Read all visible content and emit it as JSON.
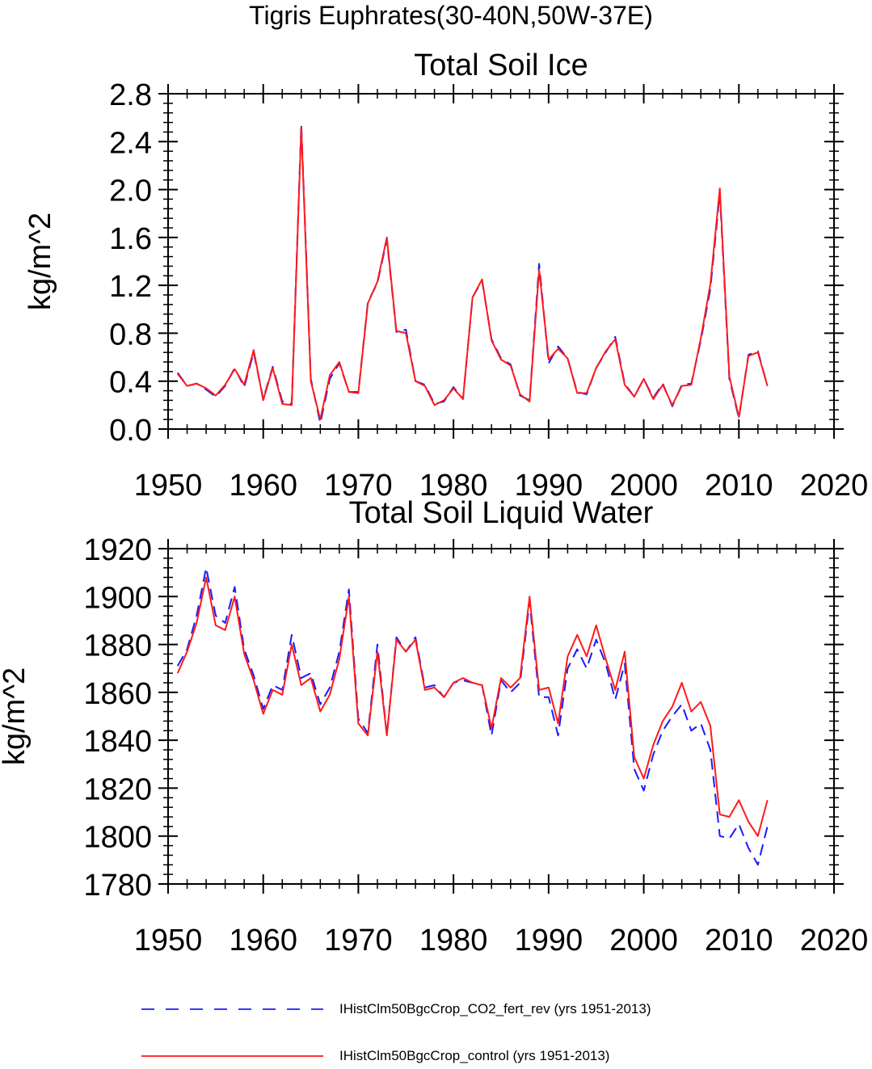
{
  "figure_title": "Tigris Euphrates(30-40N,50W-37E)",
  "colors": {
    "series_1": "#1a1aff",
    "series_2": "#ff1a1a",
    "axis": "#000000"
  },
  "legend": [
    {
      "label": "IHistClm50BgcCrop_CO2_fert_rev (yrs 1951-2013)",
      "style": "dashed",
      "color": "#1a1aff"
    },
    {
      "label": "IHistClm50BgcCrop_control (yrs 1951-2013)",
      "style": "solid",
      "color": "#ff1a1a"
    }
  ],
  "chart_data": [
    {
      "type": "line",
      "title": "Total Soil Ice",
      "xlabel": "",
      "ylabel": "kg/m^2",
      "xlim": [
        1950,
        2020
      ],
      "ylim": [
        0,
        2.8
      ],
      "xticks": [
        "1950",
        "1960",
        "1970",
        "1980",
        "1990",
        "2000",
        "2010",
        "2020"
      ],
      "yticks": [
        "0.0",
        "0.4",
        "0.8",
        "1.2",
        "1.6",
        "2.0",
        "2.4",
        "2.8"
      ],
      "x": [
        1951,
        1952,
        1953,
        1954,
        1955,
        1956,
        1957,
        1958,
        1959,
        1960,
        1961,
        1962,
        1963,
        1964,
        1965,
        1966,
        1967,
        1968,
        1969,
        1970,
        1971,
        1972,
        1973,
        1974,
        1975,
        1976,
        1977,
        1978,
        1979,
        1980,
        1981,
        1982,
        1983,
        1984,
        1985,
        1986,
        1987,
        1988,
        1989,
        1990,
        1991,
        1992,
        1993,
        1994,
        1995,
        1996,
        1997,
        1998,
        1999,
        2000,
        2001,
        2002,
        2003,
        2004,
        2005,
        2006,
        2007,
        2008,
        2009,
        2010,
        2011,
        2012,
        2013
      ],
      "series": [
        {
          "name": "IHistClm50BgcCrop_CO2_fert_rev (yrs 1951-2013)",
          "style": "dashed",
          "values": [
            0.47,
            0.36,
            0.38,
            0.33,
            0.27,
            0.36,
            0.51,
            0.35,
            0.64,
            0.25,
            0.52,
            0.23,
            0.21,
            2.55,
            0.42,
            0.05,
            0.42,
            0.55,
            0.31,
            0.31,
            1.06,
            1.22,
            1.58,
            0.81,
            0.83,
            0.4,
            0.37,
            0.21,
            0.23,
            0.35,
            0.25,
            1.1,
            1.24,
            0.75,
            0.59,
            0.54,
            0.28,
            0.24,
            1.38,
            0.55,
            0.69,
            0.59,
            0.31,
            0.29,
            0.51,
            0.64,
            0.77,
            0.38,
            0.27,
            0.42,
            0.26,
            0.38,
            0.19,
            0.37,
            0.38,
            0.74,
            1.17,
            1.97,
            0.42,
            0.09,
            0.62,
            0.65,
            0.36
          ]
        },
        {
          "name": "IHistClm50BgcCrop_control (yrs 1951-2013)",
          "style": "solid",
          "values": [
            0.46,
            0.36,
            0.38,
            0.34,
            0.28,
            0.37,
            0.5,
            0.37,
            0.66,
            0.24,
            0.51,
            0.21,
            0.2,
            2.52,
            0.4,
            0.08,
            0.45,
            0.56,
            0.31,
            0.3,
            1.05,
            1.23,
            1.6,
            0.82,
            0.8,
            0.4,
            0.36,
            0.2,
            0.24,
            0.34,
            0.25,
            1.1,
            1.25,
            0.74,
            0.58,
            0.53,
            0.29,
            0.23,
            1.33,
            0.58,
            0.67,
            0.59,
            0.3,
            0.3,
            0.51,
            0.65,
            0.75,
            0.37,
            0.27,
            0.42,
            0.25,
            0.37,
            0.2,
            0.36,
            0.37,
            0.76,
            1.21,
            2.01,
            0.44,
            0.1,
            0.61,
            0.64,
            0.36
          ]
        }
      ]
    },
    {
      "type": "line",
      "title": "Total Soil Liquid Water",
      "xlabel": "",
      "ylabel": "kg/m^2",
      "xlim": [
        1950,
        2020
      ],
      "ylim": [
        1780,
        1920
      ],
      "xticks": [
        "1950",
        "1960",
        "1970",
        "1980",
        "1990",
        "2000",
        "2010",
        "2020"
      ],
      "yticks": [
        "1780",
        "1800",
        "1820",
        "1840",
        "1860",
        "1880",
        "1900",
        "1920"
      ],
      "x": [
        1951,
        1952,
        1953,
        1954,
        1955,
        1956,
        1957,
        1958,
        1959,
        1960,
        1961,
        1962,
        1963,
        1964,
        1965,
        1966,
        1967,
        1968,
        1969,
        1970,
        1971,
        1972,
        1973,
        1974,
        1975,
        1976,
        1977,
        1978,
        1979,
        1980,
        1981,
        1982,
        1983,
        1984,
        1985,
        1986,
        1987,
        1988,
        1989,
        1990,
        1991,
        1992,
        1993,
        1994,
        1995,
        1996,
        1997,
        1998,
        1999,
        2000,
        2001,
        2002,
        2003,
        2004,
        2005,
        2006,
        2007,
        2008,
        2009,
        2010,
        2011,
        2012,
        2013
      ],
      "series": [
        {
          "name": "IHistClm50BgcCrop_CO2_fert_rev (yrs 1951-2013)",
          "style": "dashed",
          "values": [
            1871,
            1878,
            1892,
            1912,
            1892,
            1889,
            1904,
            1878,
            1867,
            1853,
            1863,
            1861,
            1884,
            1866,
            1868,
            1855,
            1862,
            1877,
            1903,
            1849,
            1843,
            1880,
            1842,
            1883,
            1877,
            1883,
            1862,
            1863,
            1858,
            1864,
            1865,
            1864,
            1863,
            1842,
            1865,
            1860,
            1864,
            1898,
            1858,
            1858,
            1842,
            1870,
            1878,
            1870,
            1882,
            1872,
            1857,
            1872,
            1828,
            1819,
            1834,
            1844,
            1850,
            1855,
            1844,
            1847,
            1836,
            1800,
            1799,
            1805,
            1795,
            1788,
            1804
          ]
        },
        {
          "name": "IHistClm50BgcCrop_control (yrs 1951-2013)",
          "style": "solid",
          "values": [
            1868,
            1877,
            1889,
            1908,
            1888,
            1886,
            1900,
            1876,
            1865,
            1851,
            1861,
            1859,
            1880,
            1863,
            1866,
            1852,
            1859,
            1874,
            1900,
            1847,
            1842,
            1877,
            1842,
            1882,
            1877,
            1882,
            1861,
            1862,
            1858,
            1864,
            1866,
            1864,
            1863,
            1845,
            1866,
            1862,
            1866,
            1900,
            1861,
            1862,
            1847,
            1875,
            1884,
            1875,
            1888,
            1874,
            1861,
            1877,
            1833,
            1824,
            1838,
            1848,
            1854,
            1864,
            1852,
            1856,
            1846,
            1809,
            1808,
            1815,
            1806,
            1800,
            1815
          ]
        }
      ]
    }
  ]
}
